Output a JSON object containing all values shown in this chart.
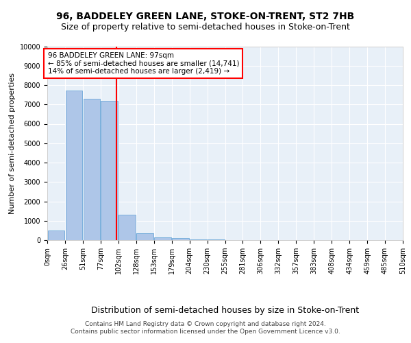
{
  "title": "96, BADDELEY GREEN LANE, STOKE-ON-TRENT, ST2 7HB",
  "subtitle": "Size of property relative to semi-detached houses in Stoke-on-Trent",
  "xlabel": "Distribution of semi-detached houses by size in Stoke-on-Trent",
  "ylabel": "Number of semi-detached properties",
  "bin_labels": [
    "0sqm",
    "26sqm",
    "51sqm",
    "77sqm",
    "102sqm",
    "128sqm",
    "153sqm",
    "179sqm",
    "204sqm",
    "230sqm",
    "255sqm",
    "281sqm",
    "306sqm",
    "332sqm",
    "357sqm",
    "383sqm",
    "408sqm",
    "434sqm",
    "459sqm",
    "485sqm",
    "510sqm"
  ],
  "bar_values": [
    500,
    7700,
    7300,
    7200,
    1300,
    350,
    150,
    100,
    50,
    50,
    0,
    0,
    0,
    0,
    0,
    0,
    0,
    0,
    0,
    0
  ],
  "bar_color": "#aec6e8",
  "bar_edge_color": "#5a9fd4",
  "vline_position": 3.88,
  "annotation_title": "96 BADDELEY GREEN LANE: 97sqm",
  "annotation_line1": "← 85% of semi-detached houses are smaller (14,741)",
  "annotation_line2": "14% of semi-detached houses are larger (2,419) →",
  "ylim": [
    0,
    10000
  ],
  "yticks": [
    0,
    1000,
    2000,
    3000,
    4000,
    5000,
    6000,
    7000,
    8000,
    9000,
    10000
  ],
  "footer1": "Contains HM Land Registry data © Crown copyright and database right 2024.",
  "footer2": "Contains public sector information licensed under the Open Government Licence v3.0.",
  "bg_color": "#e8f0f8",
  "title_fontsize": 10,
  "subtitle_fontsize": 9,
  "tick_fontsize": 7,
  "ylabel_fontsize": 8,
  "xlabel_fontsize": 9,
  "annotation_fontsize": 7.5,
  "footer_fontsize": 6.5
}
